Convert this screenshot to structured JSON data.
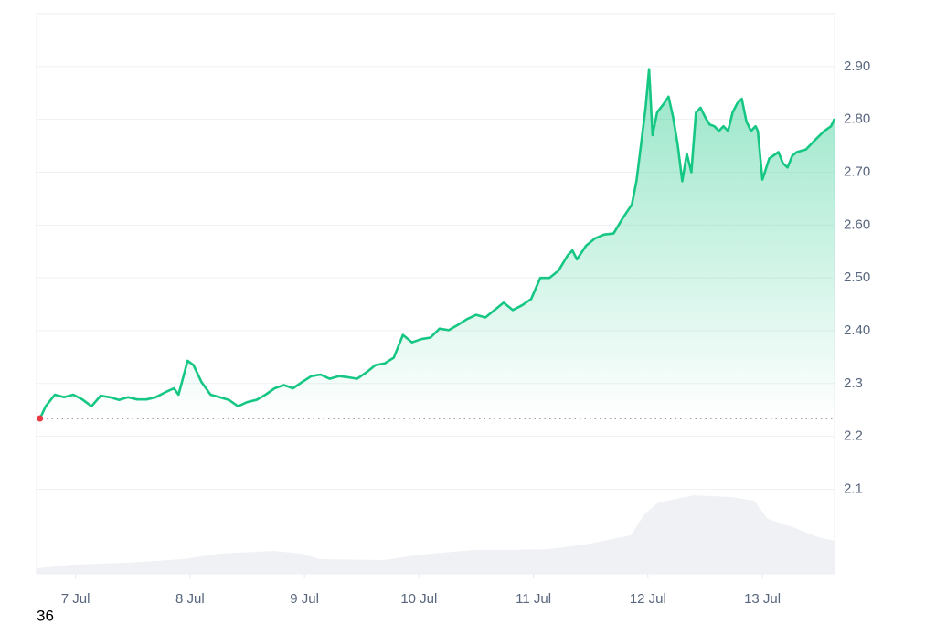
{
  "chart_data": {
    "type": "line",
    "x": [
      6.69,
      6.74,
      6.82,
      6.9,
      6.98,
      7.06,
      7.14,
      7.22,
      7.3,
      7.38,
      7.46,
      7.54,
      7.62,
      7.7,
      7.78,
      7.86,
      7.9,
      7.98,
      8.03,
      8.1,
      8.18,
      8.26,
      8.34,
      8.42,
      8.5,
      8.58,
      8.66,
      8.74,
      8.82,
      8.9,
      8.98,
      9.06,
      9.14,
      9.22,
      9.3,
      9.38,
      9.46,
      9.54,
      9.62,
      9.7,
      9.78,
      9.86,
      9.94,
      10.02,
      10.1,
      10.18,
      10.26,
      10.34,
      10.42,
      10.5,
      10.58,
      10.66,
      10.74,
      10.82,
      10.9,
      10.98,
      11.06,
      11.14,
      11.22,
      11.3,
      11.34,
      11.38,
      11.46,
      11.54,
      11.62,
      11.7,
      11.78,
      11.86,
      11.9,
      11.94,
      11.98,
      12.01,
      12.04,
      12.08,
      12.14,
      12.18,
      12.22,
      12.26,
      12.3,
      12.34,
      12.38,
      12.42,
      12.46,
      12.5,
      12.54,
      12.58,
      12.62,
      12.66,
      12.7,
      12.74,
      12.78,
      12.82,
      12.86,
      12.9,
      12.94,
      12.96,
      13.0,
      13.06,
      13.14,
      13.18,
      13.22,
      13.26,
      13.3,
      13.38,
      13.46,
      13.54,
      13.6,
      13.63
    ],
    "series": [
      {
        "color": "#16c784",
        "values": [
          2.234,
          2.257,
          2.279,
          2.274,
          2.279,
          2.27,
          2.257,
          2.277,
          2.274,
          2.269,
          2.274,
          2.27,
          2.27,
          2.274,
          2.283,
          2.291,
          2.279,
          2.343,
          2.335,
          2.303,
          2.279,
          2.274,
          2.269,
          2.257,
          2.265,
          2.269,
          2.279,
          2.291,
          2.297,
          2.291,
          2.303,
          2.314,
          2.317,
          2.309,
          2.314,
          2.312,
          2.309,
          2.321,
          2.335,
          2.338,
          2.349,
          2.392,
          2.378,
          2.384,
          2.387,
          2.404,
          2.401,
          2.411,
          2.422,
          2.43,
          2.425,
          2.439,
          2.453,
          2.439,
          2.448,
          2.46,
          2.5,
          2.5,
          2.514,
          2.543,
          2.552,
          2.535,
          2.561,
          2.575,
          2.582,
          2.584,
          2.613,
          2.639,
          2.683,
          2.752,
          2.822,
          2.895,
          2.77,
          2.813,
          2.83,
          2.843,
          2.804,
          2.752,
          2.683,
          2.735,
          2.7,
          2.813,
          2.822,
          2.804,
          2.79,
          2.787,
          2.778,
          2.787,
          2.778,
          2.813,
          2.83,
          2.839,
          2.796,
          2.778,
          2.787,
          2.778,
          2.686,
          2.726,
          2.738,
          2.717,
          2.709,
          2.731,
          2.738,
          2.743,
          2.761,
          2.778,
          2.787,
          2.801
        ]
      }
    ],
    "baseline": 2.234,
    "start_color": "#ea3943",
    "xlim": [
      6.66,
      13.63
    ],
    "xticks": [
      {
        "value": 7,
        "label": "7 Jul"
      },
      {
        "value": 8,
        "label": "8 Jul"
      },
      {
        "value": 9,
        "label": "9 Jul"
      },
      {
        "value": 10,
        "label": "10 Jul"
      },
      {
        "value": 11,
        "label": "11 Jul"
      },
      {
        "value": 12,
        "label": "12 Jul"
      },
      {
        "value": 13,
        "label": "13 Jul"
      }
    ],
    "ylim": [
      1.94,
      3.0
    ],
    "yticks": [
      {
        "value": 2.9,
        "label": "2.90"
      },
      {
        "value": 2.8,
        "label": "2.80"
      },
      {
        "value": 2.7,
        "label": "2.70"
      },
      {
        "value": 2.6,
        "label": "2.60"
      },
      {
        "value": 2.5,
        "label": "2.50"
      },
      {
        "value": 2.4,
        "label": "2.40"
      },
      2.3,
      2.2,
      2.1
    ],
    "grid": true,
    "corner_label": "36"
  }
}
